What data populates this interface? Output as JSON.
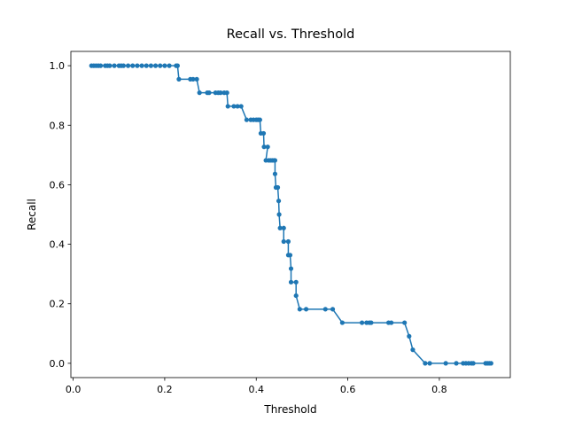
{
  "chart_data": {
    "type": "line",
    "title": "Recall vs. Threshold",
    "x_label": "Threshold",
    "y_label": "Recall",
    "xlim": [
      -0.005,
      0.955
    ],
    "ylim": [
      -0.048,
      1.048
    ],
    "xticks": [
      {
        "value": 0,
        "label": "0.0"
      },
      0.2,
      0.4,
      0.6,
      0.8
    ],
    "yticks": [
      {
        "value": 0,
        "label": "0.0"
      },
      0.2,
      0.4,
      0.6,
      0.8,
      {
        "value": 1,
        "label": "1.0"
      }
    ],
    "grid": false,
    "markers": true,
    "series": [
      {
        "color": "#1f77b4",
        "x": [
          0.04,
          0.045,
          0.05,
          0.055,
          0.06,
          0.07,
          0.075,
          0.08,
          0.09,
          0.1,
          0.105,
          0.11,
          0.12,
          0.13,
          0.14,
          0.15,
          0.16,
          0.17,
          0.18,
          0.19,
          0.2,
          0.21,
          0.225,
          0.228,
          0.231,
          0.256,
          0.262,
          0.27,
          0.276,
          0.293,
          0.297,
          0.311,
          0.317,
          0.322,
          0.33,
          0.336,
          0.338,
          0.351,
          0.359,
          0.367,
          0.379,
          0.388,
          0.394,
          0.4,
          0.404,
          0.408,
          0.41,
          0.416,
          0.417,
          0.425,
          0.421,
          0.427,
          0.431,
          0.435,
          0.439,
          0.441,
          0.441,
          0.443,
          0.447,
          0.449,
          0.45,
          0.452,
          0.46,
          0.46,
          0.47,
          0.47,
          0.474,
          0.476,
          0.476,
          0.487,
          0.487,
          0.495,
          0.509,
          0.551,
          0.567,
          0.588,
          0.631,
          0.641,
          0.647,
          0.651,
          0.689,
          0.695,
          0.724,
          0.734,
          0.742,
          0.769,
          0.779,
          0.814,
          0.837,
          0.852,
          0.858,
          0.864,
          0.87,
          0.874,
          0.901,
          0.905,
          0.909,
          0.913
        ],
        "values": [
          1,
          1,
          1,
          1,
          1,
          1,
          1,
          1,
          1,
          1,
          1,
          1,
          1,
          1,
          1,
          1,
          1,
          1,
          1,
          1,
          1,
          1,
          1,
          1,
          0.9545,
          0.9545,
          0.9545,
          0.9545,
          0.9091,
          0.9091,
          0.9091,
          0.9091,
          0.9091,
          0.9091,
          0.9091,
          0.9091,
          0.8636,
          0.8636,
          0.8636,
          0.8636,
          0.8182,
          0.8182,
          0.8182,
          0.8182,
          0.8182,
          0.8182,
          0.7727,
          0.7727,
          0.7273,
          0.7273,
          0.6818,
          0.6818,
          0.6818,
          0.6818,
          0.6818,
          0.6818,
          0.6364,
          0.5909,
          0.5909,
          0.5455,
          0.5,
          0.4545,
          0.4545,
          0.4091,
          0.4091,
          0.3636,
          0.3636,
          0.3182,
          0.2727,
          0.2727,
          0.2273,
          0.1818,
          0.1818,
          0.1818,
          0.1818,
          0.1364,
          0.1364,
          0.1364,
          0.1364,
          0.1364,
          0.1364,
          0.1364,
          0.1364,
          0.0909,
          0.0455,
          0,
          0,
          0,
          0,
          0,
          0,
          0,
          0,
          0,
          0,
          0,
          0,
          0
        ]
      }
    ]
  }
}
